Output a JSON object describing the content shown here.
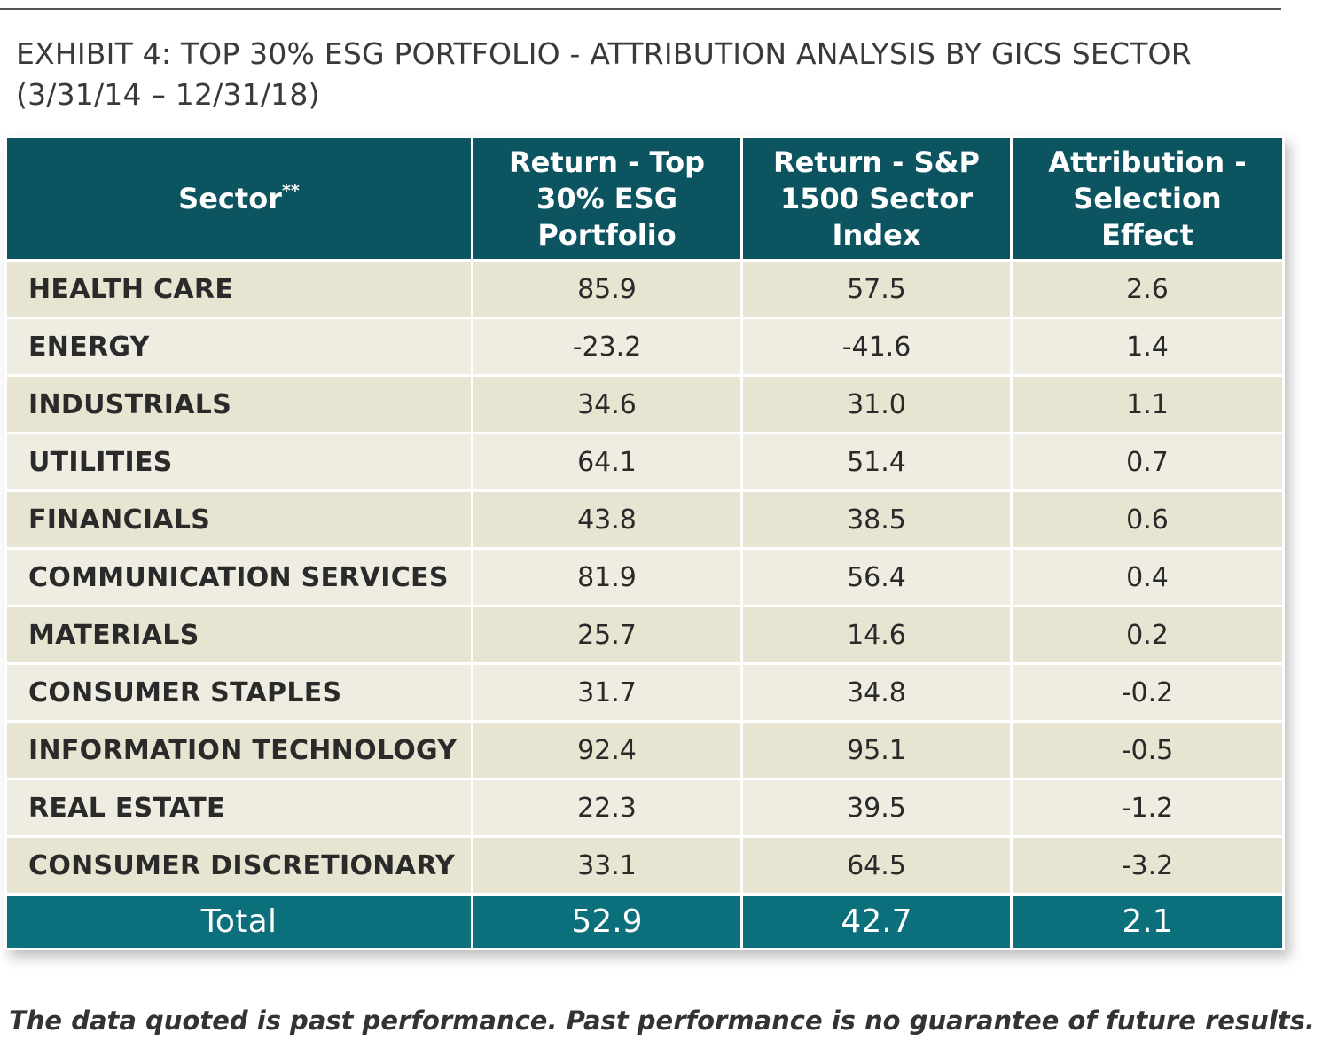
{
  "title": "EXHIBIT 4: TOP 30% ESG PORTFOLIO - ATTRIBUTION ANALYSIS BY GICS SECTOR (3/31/14 – 12/31/18)",
  "table": {
    "header": [
      {
        "text": "Sector",
        "sup": "**"
      },
      {
        "text": "Return - Top 30% ESG Portfolio"
      },
      {
        "text": "Return - S&P 1500 Sector Index"
      },
      {
        "text": "Attribution - Selection Effect"
      }
    ],
    "rows": [
      [
        "HEALTH CARE",
        "85.9",
        "57.5",
        "2.6"
      ],
      [
        "ENERGY",
        "-23.2",
        "-41.6",
        "1.4"
      ],
      [
        "INDUSTRIALS",
        "34.6",
        "31.0",
        "1.1"
      ],
      [
        "UTILITIES",
        "64.1",
        "51.4",
        "0.7"
      ],
      [
        "FINANCIALS",
        "43.8",
        "38.5",
        "0.6"
      ],
      [
        "COMMUNICATION SERVICES",
        "81.9",
        "56.4",
        "0.4"
      ],
      [
        "MATERIALS",
        "25.7",
        "14.6",
        "0.2"
      ],
      [
        "CONSUMER STAPLES",
        "31.7",
        "34.8",
        "-0.2"
      ],
      [
        "INFORMATION TECHNOLOGY",
        "92.4",
        "95.1",
        "-0.5"
      ],
      [
        "REAL ESTATE",
        "22.3",
        "39.5",
        "-1.2"
      ],
      [
        "CONSUMER DISCRETIONARY",
        "33.1",
        "64.5",
        "-3.2"
      ]
    ],
    "total": [
      "Total",
      "52.9",
      "42.7",
      "2.1"
    ]
  },
  "footnote": "The data quoted is past performance. Past performance is no guarantee of future results."
}
